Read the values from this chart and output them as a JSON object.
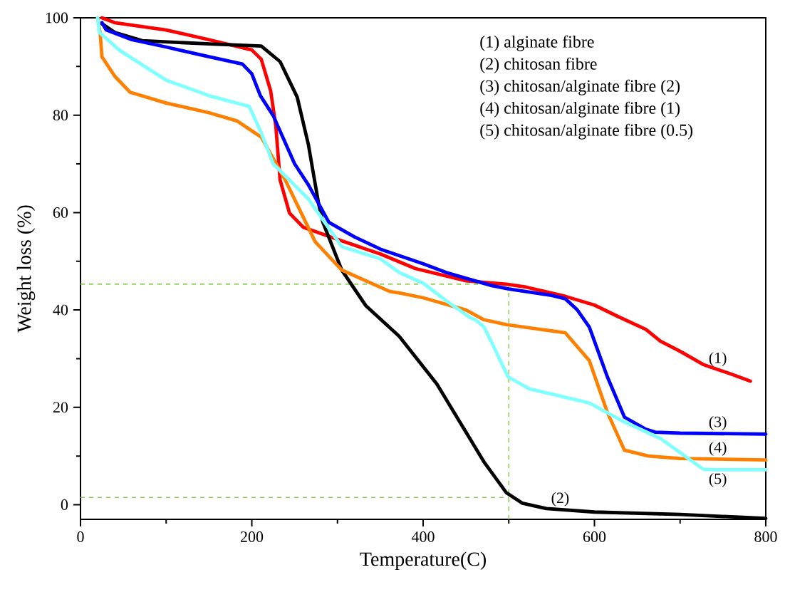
{
  "chart_data": {
    "type": "line",
    "xlabel": "Temperature(C)",
    "ylabel": "Weight loss (%)",
    "xlim": [
      0,
      800
    ],
    "ylim": [
      -3,
      100
    ],
    "xticks": [
      0,
      200,
      400,
      600,
      800
    ],
    "yticks": [
      0,
      20,
      40,
      60,
      80,
      100
    ],
    "grid": false,
    "marker": "none",
    "line_style": "solid",
    "series": [
      {
        "name": "(1)",
        "color": "#ff0000",
        "x": [
          25,
          40,
          100,
          150,
          200,
          211,
          222,
          228,
          233,
          244,
          260,
          300,
          350,
          391,
          450,
          497,
          520,
          566,
          600,
          627,
          660,
          677,
          700,
          727,
          760,
          782
        ],
        "values": [
          100,
          99,
          97.5,
          95.5,
          93.4,
          91.5,
          85,
          77.8,
          66.7,
          59.9,
          57,
          54.5,
          51.5,
          48.5,
          46,
          45.3,
          44.7,
          42.8,
          41,
          38.7,
          36,
          33.6,
          31.5,
          28.8,
          26.8,
          25.4
        ]
      },
      {
        "name": "(2)",
        "color": "#000000",
        "x": [
          25,
          40,
          72,
          155,
          211,
          233,
          253,
          266,
          278,
          283,
          305,
          333,
          372,
          416,
          471,
          497,
          516,
          544,
          600,
          700,
          800
        ],
        "values": [
          98.8,
          97,
          95.3,
          94.6,
          94.2,
          91,
          83.7,
          74,
          61.8,
          58,
          48.2,
          40.9,
          34.6,
          24.8,
          8.8,
          2.5,
          0.3,
          -0.8,
          -1.5,
          -2,
          -2.8
        ]
      },
      {
        "name": "(3)",
        "color": "#0000ff",
        "x": [
          25,
          30,
          60,
          100,
          150,
          189,
          200,
          210,
          225,
          250,
          266,
          290,
          320,
          350,
          400,
          427,
          450,
          480,
          500,
          550,
          566,
          580,
          594,
          615,
          635,
          660,
          671,
          700,
          800
        ],
        "values": [
          99,
          97.5,
          95.5,
          94,
          92,
          90.5,
          88.5,
          84,
          79.9,
          70,
          65.7,
          58,
          55,
          52.5,
          49.5,
          47.7,
          46.5,
          45,
          44.3,
          43,
          42.3,
          40,
          36.5,
          26.3,
          18,
          15.5,
          14.9,
          14.7,
          14.5
        ]
      },
      {
        "name": "(4)",
        "color": "#ff8000",
        "x": [
          20,
          23,
          25,
          40,
          58,
          100,
          150,
          183,
          211,
          239,
          274,
          305,
          361,
          372,
          400,
          450,
          471,
          497,
          566,
          594,
          615,
          635,
          663,
          700,
          800
        ],
        "values": [
          100,
          96.8,
          92,
          88,
          84.7,
          82.5,
          80.5,
          78.8,
          75.5,
          66.7,
          54,
          48.2,
          43.8,
          43.5,
          42.5,
          40,
          38,
          37,
          35.3,
          29.6,
          19,
          11.2,
          10,
          9.5,
          9.2
        ]
      },
      {
        "name": "(5)",
        "color": "#80ffff",
        "x": [
          20,
          22,
          45,
          100,
          150,
          197,
          211,
          225,
          266,
          305,
          350,
          372,
          400,
          427,
          455,
          461,
          471,
          482,
          499,
          524,
          594,
          635,
          677,
          727,
          740,
          800
        ],
        "values": [
          100,
          97,
          93.4,
          87.2,
          84,
          81.8,
          76.4,
          70,
          62.8,
          53,
          50.5,
          47.7,
          45.5,
          41.9,
          38.4,
          38,
          36.5,
          32.6,
          26.3,
          23.8,
          20.9,
          17,
          13.6,
          7.3,
          7.2,
          7.2
        ]
      }
    ],
    "ref_lines": [
      {
        "axis": "y",
        "value": 45.3,
        "color": "#8fd14f",
        "line_style": "dashed"
      },
      {
        "axis": "y",
        "value": 1.5,
        "color": "#8fd14f",
        "line_style": "dashed"
      },
      {
        "axis": "x",
        "value": 500,
        "color": "#8fd14f",
        "line_style": "dashed"
      }
    ],
    "annotations": [
      "(1) alginate fibre",
      "(2) chitosan fibre",
      "(3) chitosan/alginate fibre (2)",
      "(4) chitosan/alginate fibre (1)",
      "(5) chitosan/alginate fibre (0.5)"
    ]
  }
}
